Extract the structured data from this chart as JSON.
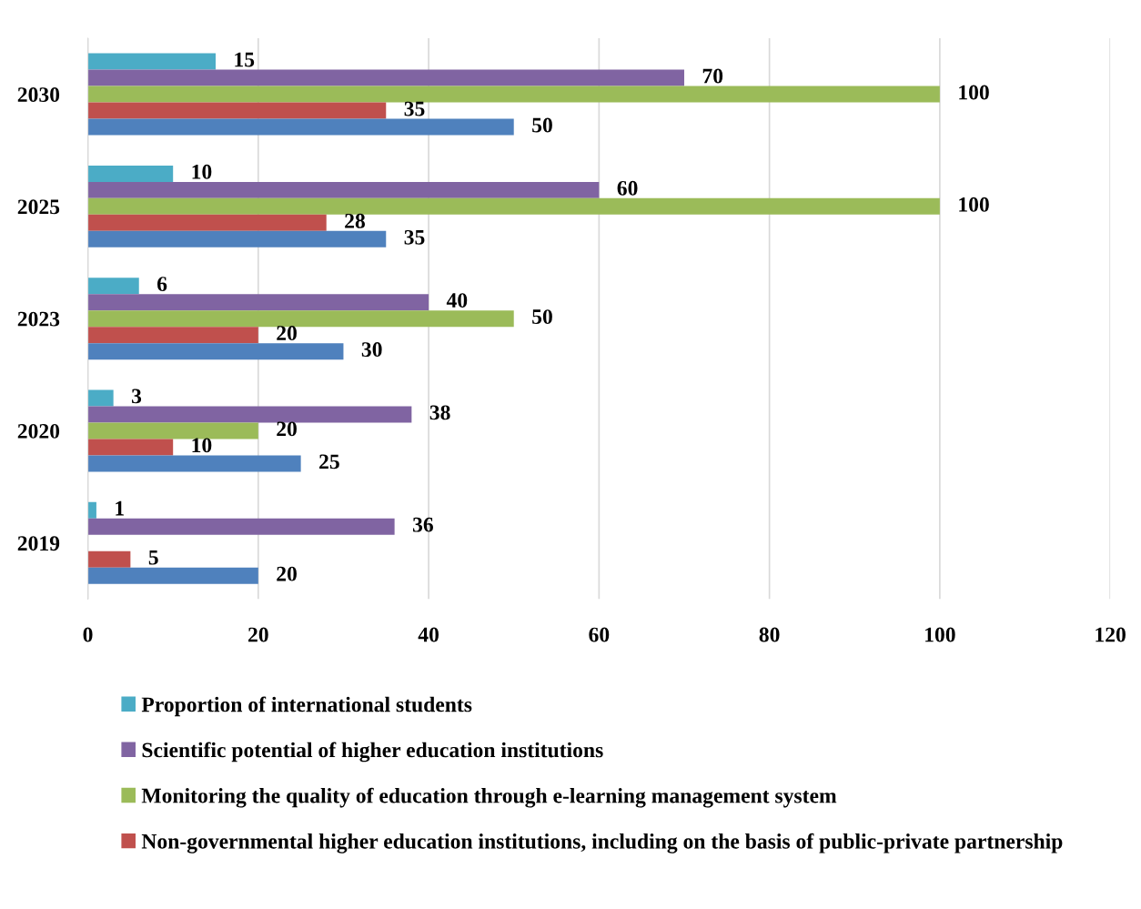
{
  "chart_data": {
    "type": "bar",
    "orientation": "horizontal",
    "categories": [
      "2030",
      "2025",
      "2023",
      "2020",
      "2019"
    ],
    "series": [
      {
        "name": "Proportion of international students",
        "color": "#4bacc6",
        "values": [
          15,
          10,
          6,
          3,
          1
        ]
      },
      {
        "name": "Scientific potential of higher education institutions",
        "color": "#8064a2",
        "values": [
          70,
          60,
          40,
          38,
          36
        ]
      },
      {
        "name": "Monitoring the quality of education through e-learning management system",
        "color": "#9bbb59",
        "values": [
          100,
          100,
          50,
          20,
          null
        ]
      },
      {
        "name": "Non-governmental higher education institutions, including on the basis of public-private partnership",
        "color": "#c0504d",
        "values": [
          35,
          28,
          20,
          10,
          5
        ]
      },
      {
        "color": "#4f81bd",
        "values": [
          50,
          35,
          30,
          25,
          20
        ]
      }
    ],
    "xlim": [
      0,
      120
    ],
    "xticks": [
      0,
      20,
      40,
      60,
      80,
      100,
      120
    ],
    "grid": "x",
    "legend": "bottom",
    "data_labels": true
  }
}
